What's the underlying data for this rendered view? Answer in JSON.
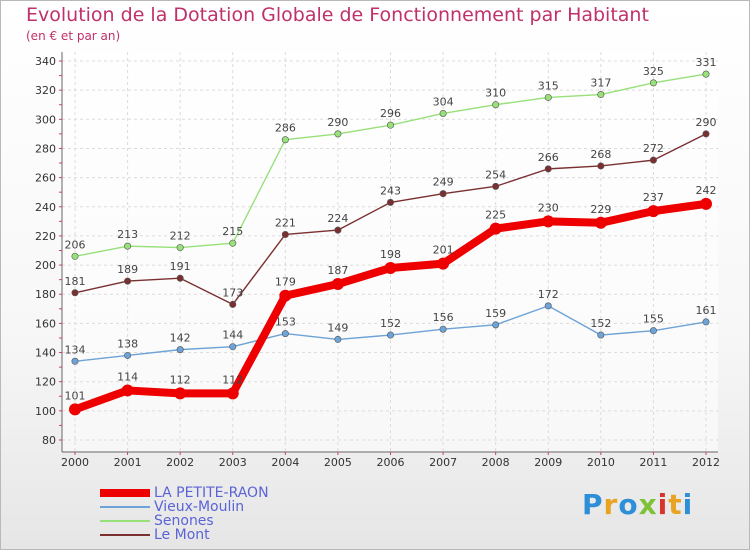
{
  "header": {
    "title": "Evolution de la Dotation Globale de Fonctionnement par Habitant",
    "subtitle": "(en € et par an)"
  },
  "logo": {
    "text": "Proxiti",
    "letters": [
      "P",
      "r",
      "o",
      "x",
      "i",
      "t",
      "i"
    ],
    "colors": [
      "#2d8fd8",
      "#e9a323",
      "#2d8fd8",
      "#7fc23a",
      "#d8342b",
      "#e9a323",
      "#2d8fd8"
    ]
  },
  "chart_data": {
    "type": "line",
    "x": [
      "2000",
      "2001",
      "2002",
      "2003",
      "2004",
      "2005",
      "2006",
      "2007",
      "2008",
      "2009",
      "2010",
      "2011",
      "2012"
    ],
    "ylim": [
      80,
      340
    ],
    "yticks": [
      "80",
      "100",
      "120",
      "140",
      "160",
      "180",
      "200",
      "220",
      "240",
      "260",
      "280",
      "300",
      "320",
      "340"
    ],
    "grid": true,
    "legend_position": "bottom-left",
    "series": [
      {
        "name": "LA PETITE-RAON",
        "color": "#ee0000",
        "emphasis": true,
        "values": [
          101,
          114,
          112,
          112,
          179,
          187,
          198,
          201,
          225,
          230,
          229,
          237,
          242
        ],
        "labels": [
          "101",
          "114",
          "112",
          "112",
          "179",
          "187",
          "198",
          "201",
          "225",
          "230",
          "229",
          "237",
          "242"
        ]
      },
      {
        "name": "Vieux-Moulin",
        "color": "#6da3d6",
        "values": [
          134,
          138,
          142,
          144,
          153,
          149,
          152,
          156,
          159,
          172,
          152,
          155,
          161
        ],
        "labels": [
          "134",
          "138",
          "142",
          "144",
          "153",
          "149",
          "152",
          "156",
          "159",
          "172",
          "152",
          "155",
          "161"
        ]
      },
      {
        "name": "Senones",
        "color": "#98e07a",
        "values": [
          206,
          213,
          212,
          215,
          286,
          290,
          296,
          304,
          310,
          315,
          317,
          325,
          331
        ],
        "labels": [
          "206",
          "213",
          "212",
          "215",
          "286",
          "290",
          "296",
          "304",
          "310",
          "315",
          "317",
          "325",
          "331"
        ]
      },
      {
        "name": "Le Mont",
        "color": "#7a3030",
        "values": [
          181,
          189,
          191,
          173,
          221,
          224,
          243,
          249,
          254,
          266,
          268,
          272,
          290
        ],
        "labels": [
          "181",
          "189",
          "191",
          "173",
          "221",
          "224",
          "243",
          "249",
          "254",
          "266",
          "268",
          "272",
          "290"
        ]
      }
    ]
  },
  "legend": {
    "items": [
      {
        "label": "LA PETITE-RAON"
      },
      {
        "label": "Vieux-Moulin"
      },
      {
        "label": "Senones"
      },
      {
        "label": "Le Mont"
      }
    ]
  }
}
